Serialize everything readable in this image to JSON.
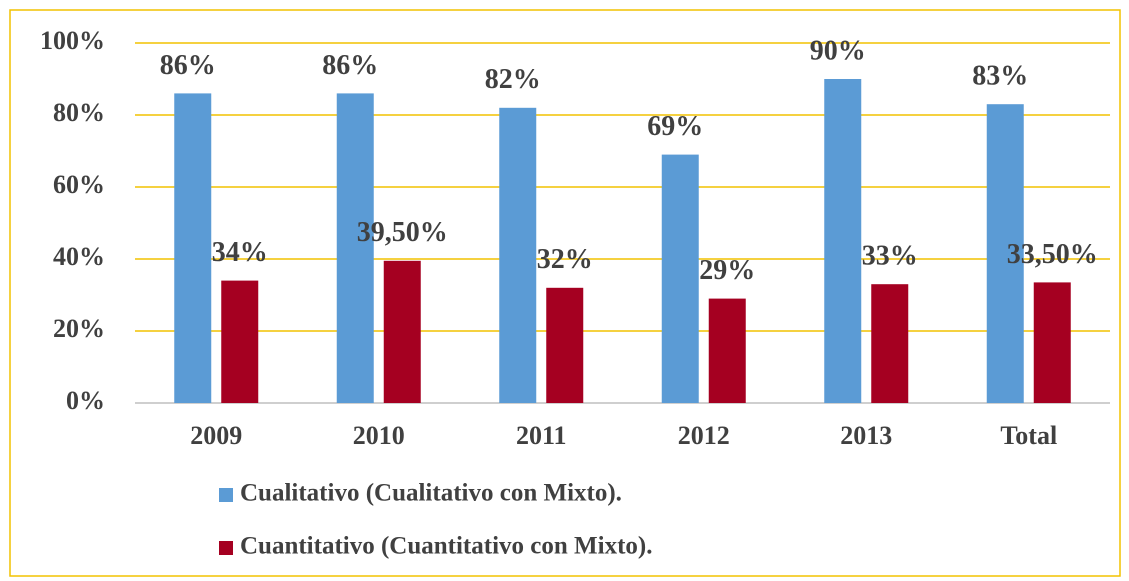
{
  "chart_data": {
    "type": "bar",
    "categories": [
      "2009",
      "2010",
      "2011",
      "2012",
      "2013",
      "Total"
    ],
    "series": [
      {
        "name": "Cualitativo (Cualitativo con Mixto).",
        "color": "#5b9bd5",
        "values": [
          86,
          86,
          82,
          69,
          90,
          83
        ],
        "value_labels": [
          "86%",
          "86%",
          "82%",
          "69%",
          "90%",
          "83%"
        ]
      },
      {
        "name": "Cuantitativo (Cuantitativo con Mixto).",
        "color": "#a50021",
        "values": [
          34,
          39.5,
          32,
          29,
          33,
          33.5
        ],
        "value_labels": [
          "34%",
          "39,50%",
          "32%",
          "29%",
          "33%",
          "33,50%"
        ]
      }
    ],
    "ylim": [
      0,
      100
    ],
    "yticks": [
      {
        "value": 0,
        "label": "0%"
      },
      {
        "value": 20,
        "label": "20%"
      },
      {
        "value": 40,
        "label": "40%"
      },
      {
        "value": 60,
        "label": "60%"
      },
      {
        "value": 80,
        "label": "80%"
      },
      {
        "value": 100,
        "label": "100%"
      }
    ],
    "grid": true
  }
}
